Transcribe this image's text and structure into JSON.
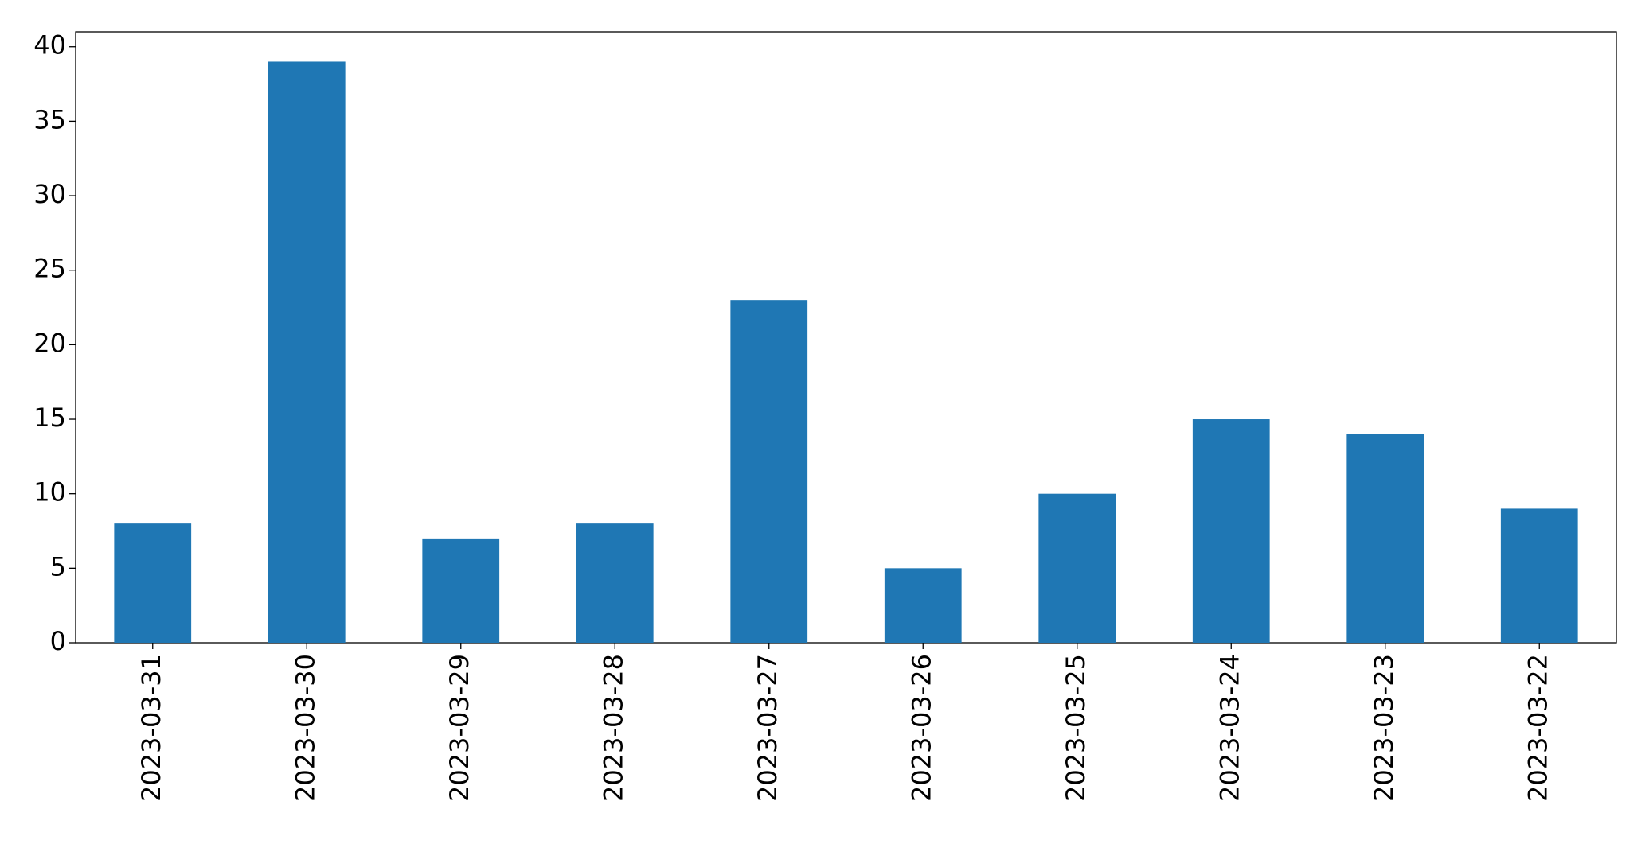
{
  "chart_data": {
    "type": "bar",
    "categories": [
      "2023-03-31",
      "2023-03-30",
      "2023-03-29",
      "2023-03-28",
      "2023-03-27",
      "2023-03-26",
      "2023-03-25",
      "2023-03-24",
      "2023-03-23",
      "2023-03-22"
    ],
    "values": [
      8,
      39,
      7,
      8,
      23,
      5,
      10,
      15,
      14,
      9
    ],
    "color": "#1f77b4",
    "ylim": [
      0,
      41
    ],
    "yticks": [
      0,
      5,
      10,
      15,
      20,
      25,
      30,
      35,
      40
    ],
    "grid": false
  }
}
